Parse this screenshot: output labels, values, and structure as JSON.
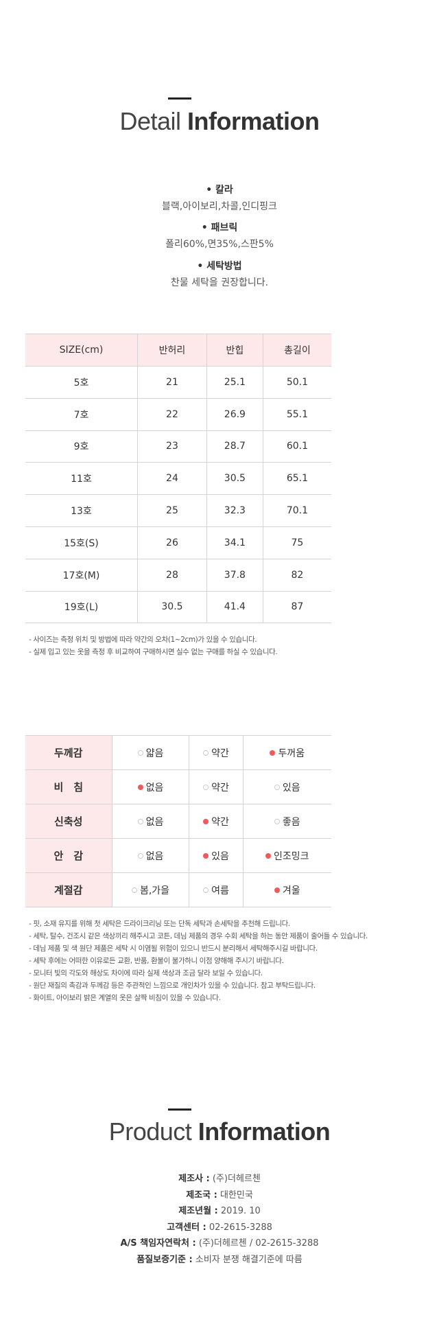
{
  "detail": {
    "title_light": "Detail",
    "title_bold": "Information",
    "specs": [
      {
        "label": "칼라",
        "value": "블랙,아이보리,차콜,인디핑크"
      },
      {
        "label": "패브릭",
        "value": "폴리60%,면35%,스판5%"
      },
      {
        "label": "세탁방법",
        "value": "찬물 세탁을 권장합니다."
      }
    ]
  },
  "size_table": {
    "headers": [
      "SIZE(cm)",
      "반허리",
      "반힙",
      "총길이"
    ],
    "rows": [
      [
        "5호",
        "21",
        "25.1",
        "50.1"
      ],
      [
        "7호",
        "22",
        "26.9",
        "55.1"
      ],
      [
        "9호",
        "23",
        "28.7",
        "60.1"
      ],
      [
        "11호",
        "24",
        "30.5",
        "65.1"
      ],
      [
        "13호",
        "25",
        "32.3",
        "70.1"
      ],
      [
        "15호(S)",
        "26",
        "34.1",
        "75"
      ],
      [
        "17호(M)",
        "28",
        "37.8",
        "82"
      ],
      [
        "19호(L)",
        "30.5",
        "41.4",
        "87"
      ]
    ],
    "notes": [
      "- 사이즈는 측정 위치 및 방법에 따라 약간의 오차(1~2cm)가 있을 수 있습니다.",
      "- 실제 입고 있는 옷을 측정 후 비교하여 구매하시면 실수 없는 구매를 하실 수 있습니다."
    ]
  },
  "feel_table": {
    "rows": [
      {
        "label": "두께감",
        "options": [
          "얇음",
          "약간",
          "두꺼움"
        ],
        "selected": 2
      },
      {
        "label": "비　침",
        "options": [
          "없음",
          "약간",
          "있음"
        ],
        "selected": 0
      },
      {
        "label": "신축성",
        "options": [
          "없음",
          "약간",
          "좋음"
        ],
        "selected": 1
      },
      {
        "label": "안　감",
        "options": [
          "없음",
          "있음",
          "인조밍크"
        ],
        "selected": [
          1,
          2
        ]
      },
      {
        "label": "계절감",
        "options": [
          "봄,가을",
          "여름",
          "겨울"
        ],
        "selected": 2
      }
    ],
    "notes": [
      "- 핏, 소재 유지를 위해 첫 세탁은 드라이크리닝 또는 단독 세탁과 손세탁을 추천해 드립니다.",
      "- 세탁, 탈수, 건조시 같은 색상끼리 해주시고 코튼, 데님 제품의 경우 수회 세탁을 하는 동안 제품이 줄어들 수 있습니다.",
      "- 데님 제품 및 색 원단 제품은 세탁 시 이염될 위험이 있으니 반드시 분리해서 세탁해주시길 바랍니다.",
      "- 세탁 후에는 어떠한 이유로든 교환, 반품, 환불이 불가하니 이점 양해해 주시기 바랍니다.",
      "- 모니터 빛의 각도와 해상도 차이에 따라 실제 색상과 조금 달라 보일 수 있습니다.",
      "- 원단 재질의 촉감과 두께감 등은 주관적인 느낌으로 개인차가 있을 수 있습니다. 참고 부탁드립니다.",
      "- 화이트, 아이보리 밝은 계열의 옷은 살짝 비침이 있을 수 있습니다."
    ]
  },
  "product": {
    "title_light": "Product",
    "title_bold": "Information",
    "items": [
      {
        "label": "제조사 :",
        "value": "(주)더헤르첸"
      },
      {
        "label": "제조국 :",
        "value": "대한민국"
      },
      {
        "label": "제조년월 :",
        "value": "2019. 10"
      },
      {
        "label": "고객센터 :",
        "value": "02-2615-3288"
      },
      {
        "label": "A/S 책임자연락처 :",
        "value": "(주)더헤르첸 / 02-2615-3288"
      },
      {
        "label": "품질보증기준 :",
        "value": "소비자 분쟁 해결기준에 따름"
      }
    ]
  },
  "colors": {
    "accent_dot": "#f05a5a",
    "header_bg": "#fde9e9"
  }
}
